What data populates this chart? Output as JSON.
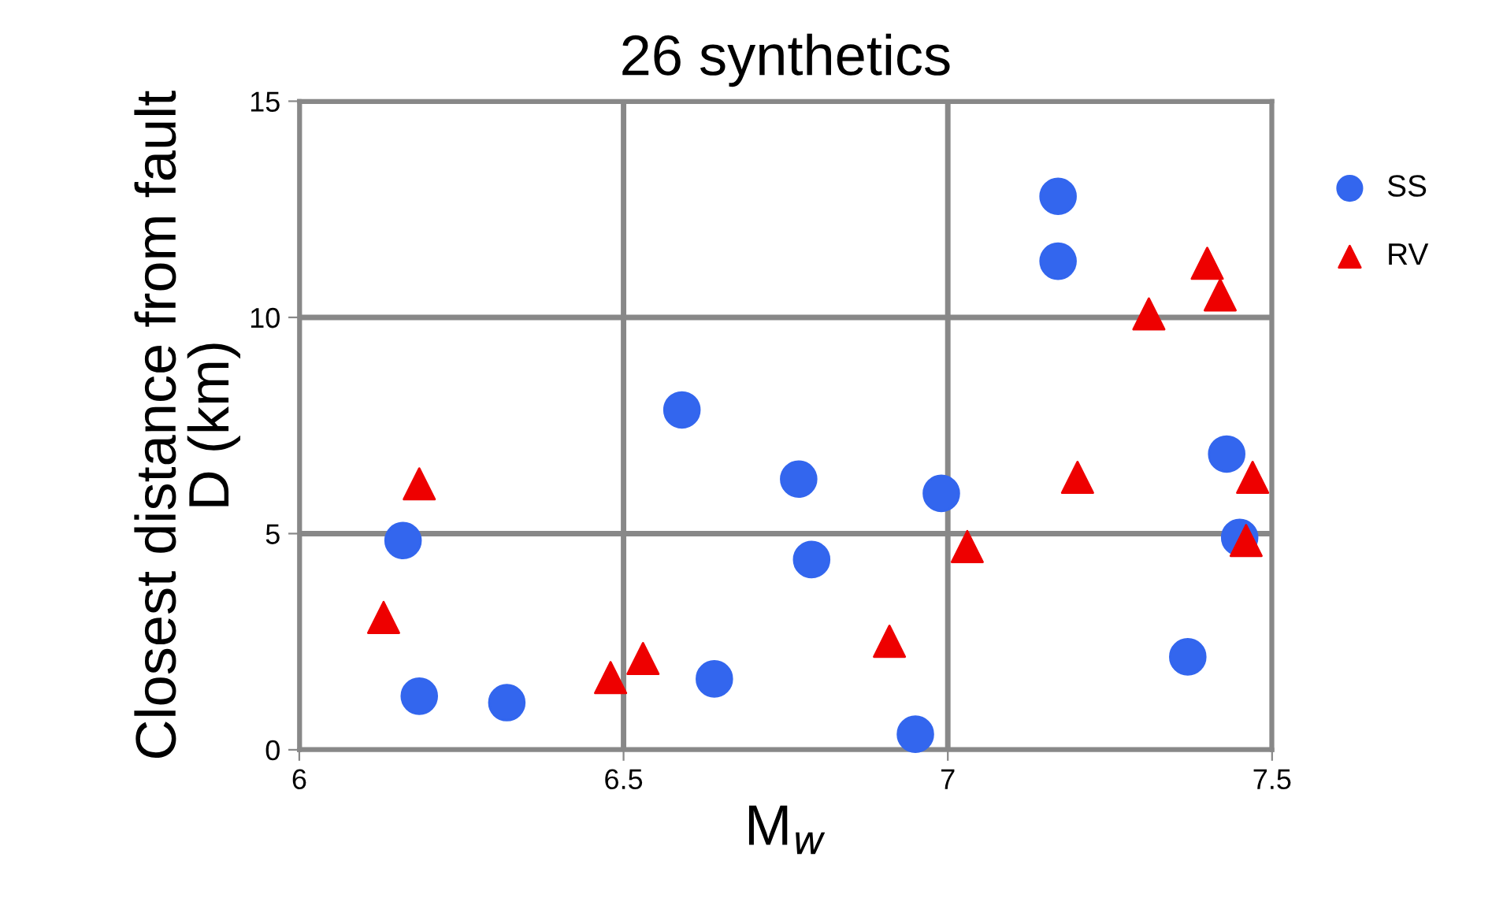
{
  "chart_data": {
    "type": "scatter",
    "title": "26 synthetics",
    "xlabel": "M$_{w}$",
    "ylabel": "Closest distance from fault\nD (km)",
    "xlim": [
      6,
      7.5
    ],
    "xticks": [
      6,
      6.5,
      7,
      7.5
    ],
    "ylim": [
      0,
      15
    ],
    "yticks": [
      0,
      5,
      10,
      15
    ],
    "grid": true,
    "legend": "top right",
    "series": [
      {
        "name": "SS",
        "color": "#3366ee",
        "marker": "circle",
        "x": [
          6.16,
          6.185,
          6.32,
          6.59,
          6.77,
          6.79,
          6.64,
          6.95,
          6.99,
          7.17,
          7.17,
          7.43,
          7.45,
          7.37
        ],
        "values": [
          4.84,
          1.24,
          1.09,
          7.86,
          6.26,
          4.4,
          1.64,
          0.36,
          5.93,
          12.8,
          11.3,
          6.84,
          4.91,
          2.15
        ]
      },
      {
        "name": "RV",
        "color": "#ee0000",
        "marker": "triangle",
        "x": [
          6.185,
          6.13,
          6.48,
          6.53,
          6.91,
          7.03,
          7.2,
          7.31,
          7.4,
          7.42,
          7.47,
          7.46
        ],
        "values": [
          6.15,
          3.06,
          1.67,
          2.11,
          2.51,
          4.7,
          6.3,
          10.08,
          11.25,
          10.52,
          6.3,
          4.84
        ]
      }
    ]
  }
}
